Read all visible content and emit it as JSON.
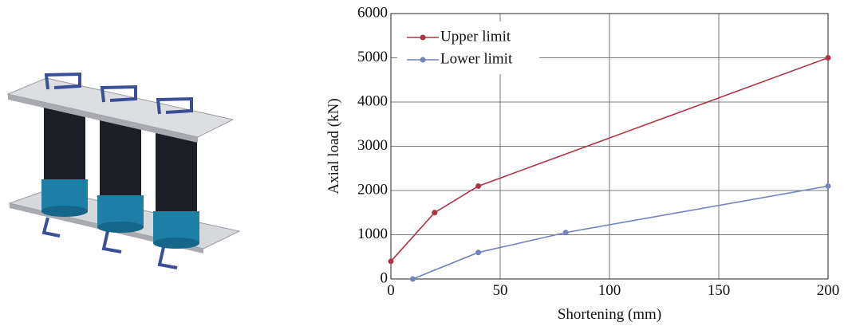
{
  "chart_data": {
    "type": "line",
    "xlabel": "Shortening (mm)",
    "ylabel": "Axial load (kN)",
    "xlim": [
      0,
      200
    ],
    "xticks": [
      0,
      50,
      100,
      150,
      200
    ],
    "ylim": [
      0,
      6000
    ],
    "yticks": [
      0,
      1000,
      2000,
      3000,
      4000,
      5000,
      6000
    ],
    "grid": true,
    "legend": "upper left",
    "series": [
      {
        "name": "Upper limit",
        "color": "#b03345",
        "x": [
          0,
          20,
          40,
          200
        ],
        "values": [
          400,
          1500,
          2100,
          5000
        ]
      },
      {
        "name": "Lower limit",
        "color": "#7384bc",
        "x": [
          10,
          40,
          80,
          200
        ],
        "values": [
          0,
          600,
          1050,
          2100
        ]
      }
    ]
  }
}
